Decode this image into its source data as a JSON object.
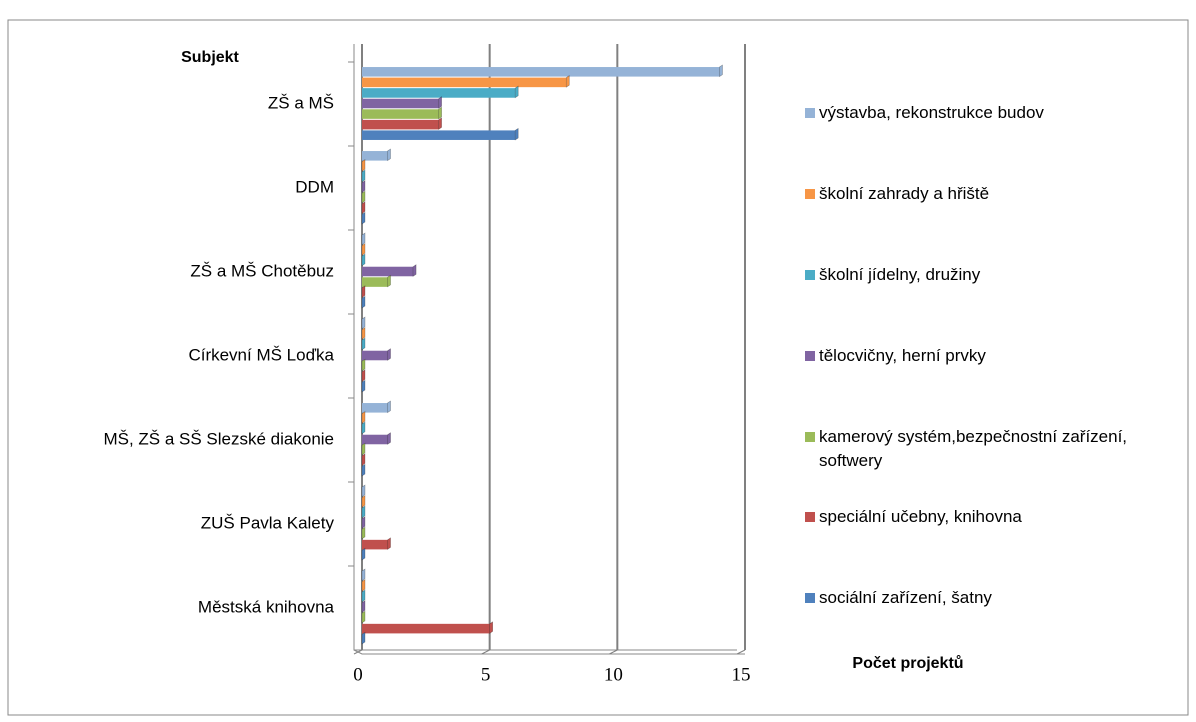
{
  "chart_data": {
    "type": "hbar",
    "y_axis_label": "Subjekt",
    "x_axis_label": "Počet projektů",
    "categories": [
      "ZŠ a MŠ",
      "DDM",
      "ZŠ a MŠ Chotěbuz",
      "Církevní MŠ Loďka",
      "MŠ, ZŠ a SŠ Slezské diakonie",
      "ZUŠ Pavla Kalety",
      "Městská knihovna"
    ],
    "series": [
      {
        "name": "výstavba, rekonstrukce budov",
        "color": "#95b3d7",
        "values": [
          14,
          1,
          0,
          0,
          1,
          0,
          0
        ]
      },
      {
        "name": "školní zahrady a hřiště",
        "color": "#f79646",
        "values": [
          8,
          0,
          0,
          0,
          0,
          0,
          0
        ]
      },
      {
        "name": "školní jídelny, družiny",
        "color": "#4bacc6",
        "values": [
          6,
          0,
          0,
          0,
          0,
          0,
          0
        ]
      },
      {
        "name": "tělocvičny, herní prvky",
        "color": "#8064a2",
        "values": [
          3,
          0,
          2,
          1,
          1,
          0,
          0
        ]
      },
      {
        "name": "kamerový systém,bezpečnostní zařízení, softwery",
        "color": "#9bbb59",
        "values": [
          3,
          0,
          1,
          0,
          0,
          0,
          0
        ]
      },
      {
        "name": "speciální učebny, knihovna",
        "color": "#c0504d",
        "values": [
          3,
          0,
          0,
          0,
          0,
          1,
          5
        ]
      },
      {
        "name": "sociální zařízení, šatny",
        "color": "#4f81bd",
        "values": [
          6,
          0,
          0,
          0,
          0,
          0,
          0
        ]
      }
    ],
    "xlim": [
      0,
      15
    ],
    "xticks": [
      0,
      5,
      10,
      15
    ],
    "grid": true,
    "legend": "right"
  }
}
